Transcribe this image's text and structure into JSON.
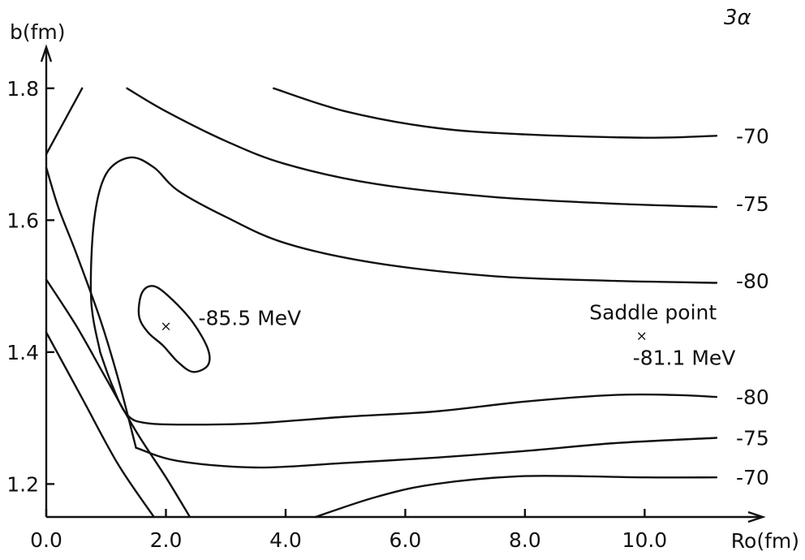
{
  "chart_data": {
    "type": "contour",
    "title": "3α",
    "xlabel": "Ro(fm)",
    "ylabel": "b(fm)",
    "xlim": [
      0.0,
      11.5
    ],
    "ylim": [
      1.15,
      1.86
    ],
    "xticks": [
      "0.0",
      "2.0",
      "4.0",
      "6.0",
      "8.0",
      "10.0"
    ],
    "xtick_values": [
      0,
      2,
      4,
      6,
      8,
      10
    ],
    "yticks": [
      "1.2",
      "1.4",
      "1.6",
      "1.8"
    ],
    "ytick_values": [
      1.2,
      1.4,
      1.6,
      1.8
    ],
    "grid": false,
    "contours": [
      {
        "level": "-70",
        "points": [
          [
            3.8,
            1.8
          ],
          [
            5.0,
            1.765
          ],
          [
            6.5,
            1.74
          ],
          [
            8.0,
            1.73
          ],
          [
            10.0,
            1.725
          ],
          [
            11.2,
            1.728
          ]
        ]
      },
      {
        "level": "-70",
        "points": [
          [
            0.0,
            1.7
          ],
          [
            0.3,
            1.75
          ],
          [
            0.6,
            1.8
          ]
        ]
      },
      {
        "level": "-70",
        "points": [
          [
            0.0,
            1.43
          ],
          [
            0.6,
            1.33
          ],
          [
            1.2,
            1.23
          ],
          [
            1.8,
            1.15
          ]
        ]
      },
      {
        "level": "-70",
        "points": [
          [
            4.5,
            1.15
          ],
          [
            5.5,
            1.18
          ],
          [
            6.5,
            1.2
          ],
          [
            8.0,
            1.212
          ],
          [
            10.0,
            1.21
          ],
          [
            11.2,
            1.21
          ]
        ]
      },
      {
        "level": "-75",
        "points": [
          [
            1.35,
            1.8
          ],
          [
            2.0,
            1.765
          ],
          [
            3.0,
            1.72
          ],
          [
            4.0,
            1.685
          ],
          [
            5.5,
            1.655
          ],
          [
            7.5,
            1.635
          ],
          [
            9.5,
            1.625
          ],
          [
            11.2,
            1.62
          ]
        ]
      },
      {
        "level": "-75",
        "points": [
          [
            0.0,
            1.51
          ],
          [
            0.5,
            1.44
          ],
          [
            1.0,
            1.36
          ],
          [
            1.5,
            1.28
          ],
          [
            2.0,
            1.21
          ],
          [
            2.4,
            1.15
          ]
        ]
      },
      {
        "level": "-75",
        "points": [
          [
            1.5,
            1.255
          ],
          [
            2.2,
            1.235
          ],
          [
            3.5,
            1.225
          ],
          [
            5.0,
            1.232
          ],
          [
            6.5,
            1.24
          ],
          [
            8.0,
            1.25
          ],
          [
            9.5,
            1.262
          ],
          [
            11.2,
            1.27
          ]
        ]
      },
      {
        "level": "-75",
        "points": [
          [
            0.0,
            1.68
          ],
          [
            0.2,
            1.62
          ],
          [
            0.5,
            1.55
          ],
          [
            0.9,
            1.45
          ],
          [
            1.2,
            1.36
          ],
          [
            1.5,
            1.255
          ]
        ]
      },
      {
        "level": "-80",
        "points": [
          [
            0.9,
            1.4
          ],
          [
            0.75,
            1.48
          ],
          [
            0.8,
            1.6
          ],
          [
            1.0,
            1.67
          ],
          [
            1.4,
            1.695
          ],
          [
            1.8,
            1.68
          ],
          [
            2.2,
            1.645
          ],
          [
            3.0,
            1.605
          ],
          [
            4.0,
            1.565
          ],
          [
            5.5,
            1.535
          ],
          [
            7.5,
            1.515
          ],
          [
            9.5,
            1.508
          ],
          [
            11.2,
            1.505
          ]
        ]
      },
      {
        "level": "-80",
        "points": [
          [
            0.9,
            1.4
          ],
          [
            1.1,
            1.35
          ],
          [
            1.35,
            1.305
          ],
          [
            1.7,
            1.292
          ],
          [
            2.5,
            1.29
          ],
          [
            3.5,
            1.292
          ],
          [
            5.0,
            1.302
          ],
          [
            6.5,
            1.31
          ],
          [
            8.0,
            1.325
          ],
          [
            9.5,
            1.335
          ],
          [
            10.5,
            1.335
          ],
          [
            11.2,
            1.332
          ]
        ]
      },
      {
        "level": "-85.5 MeV",
        "closed": true,
        "points": [
          [
            1.55,
            1.455
          ],
          [
            1.6,
            1.49
          ],
          [
            1.8,
            1.5
          ],
          [
            2.1,
            1.48
          ],
          [
            2.45,
            1.445
          ],
          [
            2.7,
            1.405
          ],
          [
            2.7,
            1.38
          ],
          [
            2.45,
            1.37
          ],
          [
            2.2,
            1.385
          ],
          [
            1.95,
            1.41
          ],
          [
            1.7,
            1.43
          ],
          [
            1.55,
            1.455
          ]
        ]
      }
    ],
    "contour_labels": [
      {
        "text": "-70",
        "x": 11.5,
        "y": 1.728
      },
      {
        "text": "-75",
        "x": 11.5,
        "y": 1.625
      },
      {
        "text": "-80",
        "x": 11.5,
        "y": 1.508
      },
      {
        "text": "-80",
        "x": 11.5,
        "y": 1.332
      },
      {
        "text": "-75",
        "x": 11.5,
        "y": 1.27
      },
      {
        "text": "-70",
        "x": 11.5,
        "y": 1.21
      }
    ],
    "annotations": [
      {
        "name": "minimum",
        "marker": "×",
        "text": "-85.5 MeV",
        "x": 2.0,
        "y": 1.44
      },
      {
        "name": "saddle-point",
        "marker": "×",
        "title": "Saddle point",
        "text": "-81.1 MeV",
        "x": 9.95,
        "y": 1.425
      }
    ]
  }
}
